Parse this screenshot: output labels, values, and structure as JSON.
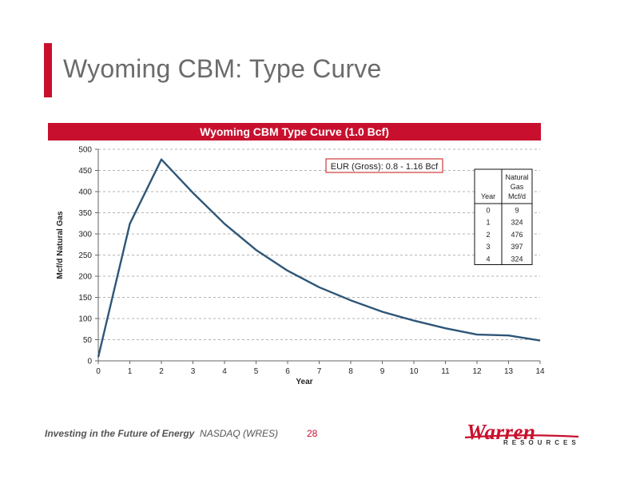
{
  "slide": {
    "title": "Wyoming CBM: Type Curve",
    "accent_color": "#c8102e"
  },
  "footer": {
    "tagline_bold": "Investing in the Future of Energy",
    "tagline_ticker": "NASDAQ (WRES)",
    "page_number": "28",
    "logo_word": "Warren",
    "logo_sub": "RESOURCES"
  },
  "chart_data": {
    "type": "line",
    "title": "Wyoming CBM Type Curve (1.0 Bcf)",
    "xlabel": "Year",
    "ylabel": "Mcf/d Natural Gas",
    "xlim": [
      0,
      14
    ],
    "ylim": [
      0,
      500
    ],
    "x_ticks": [
      0,
      1,
      2,
      3,
      4,
      5,
      6,
      7,
      8,
      9,
      10,
      11,
      12,
      13,
      14
    ],
    "y_ticks": [
      0,
      50,
      100,
      150,
      200,
      250,
      300,
      350,
      400,
      450,
      500
    ],
    "grid": "horizontal-dashed",
    "line_color": "#2e5677",
    "series": [
      {
        "x": [
          0,
          1,
          2,
          3,
          4,
          5,
          6,
          7,
          8,
          9,
          10,
          11,
          12,
          13,
          14
        ],
        "values": [
          9,
          324,
          476,
          397,
          324,
          262,
          213,
          174,
          143,
          116,
          95,
          77,
          62,
          60,
          48
        ]
      }
    ],
    "annotation": "EUR (Gross): 0.8 - 1.16 Bcf",
    "table": {
      "headers": [
        "Year",
        "Natural Gas Mcf/d"
      ],
      "rows": [
        [
          "0",
          "9"
        ],
        [
          "1",
          "324"
        ],
        [
          "2",
          "476"
        ],
        [
          "3",
          "397"
        ],
        [
          "4",
          "324"
        ]
      ]
    }
  }
}
